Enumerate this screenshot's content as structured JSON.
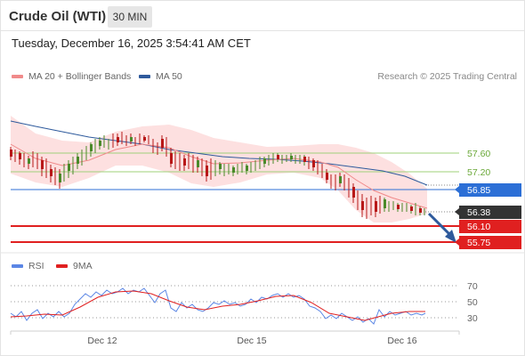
{
  "instrument": "Crude Oil (WTI)",
  "timeframe": "30 MIN",
  "datetime": "Tuesday, December 16, 2025 3:54:41 AM CET",
  "legend": {
    "ma20_bb": "MA 20 + Bollinger Bands",
    "ma50": "MA 50",
    "credit": "Research © 2025 Trading Central",
    "rsi": "RSI",
    "ma9": "9MA"
  },
  "colors": {
    "bollinger_fill": "#fde0e0",
    "ma20": "#f08a8a",
    "ma50": "#2e5a9c",
    "candle_up": "#4a8a2a",
    "candle_down": "#b81818",
    "resistance": "#9fd07a",
    "pivot": "#2c6fd6",
    "support": "#e02020",
    "current_price": "#333333",
    "rsi_line": "#5b86e5",
    "rsi_ma": "#e02020"
  },
  "levels": [
    {
      "label": "57.60",
      "type": "resistance"
    },
    {
      "label": "57.20",
      "type": "resistance"
    },
    {
      "label": "56.85",
      "type": "pivot"
    },
    {
      "label": "56.38",
      "type": "current"
    },
    {
      "label": "56.10",
      "type": "support"
    },
    {
      "label": "55.75",
      "type": "support"
    }
  ],
  "x_axis": [
    "Dec 12",
    "Dec 15",
    "Dec 16"
  ],
  "rsi_axis": [
    "70",
    "50",
    "30"
  ]
}
